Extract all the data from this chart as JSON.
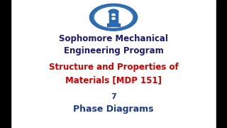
{
  "bg_color": "#ffffff",
  "black_bar_width": 0.047,
  "line1": "Sophomore Mechanical",
  "line2": "Engineering Program",
  "line3": "Structure and Properties of",
  "line4": "Materials [MDP 151]",
  "line5": "7",
  "line6": "Phase Diagrams",
  "color_heading": "#1a1a6e",
  "color_red": "#cc0000",
  "color_blue": "#1a3a8f",
  "logo_outer_color": "#2a6ab0",
  "logo_inner_color": "#ffffff",
  "figsize": [
    3.2,
    1.8
  ],
  "dpi": 100
}
